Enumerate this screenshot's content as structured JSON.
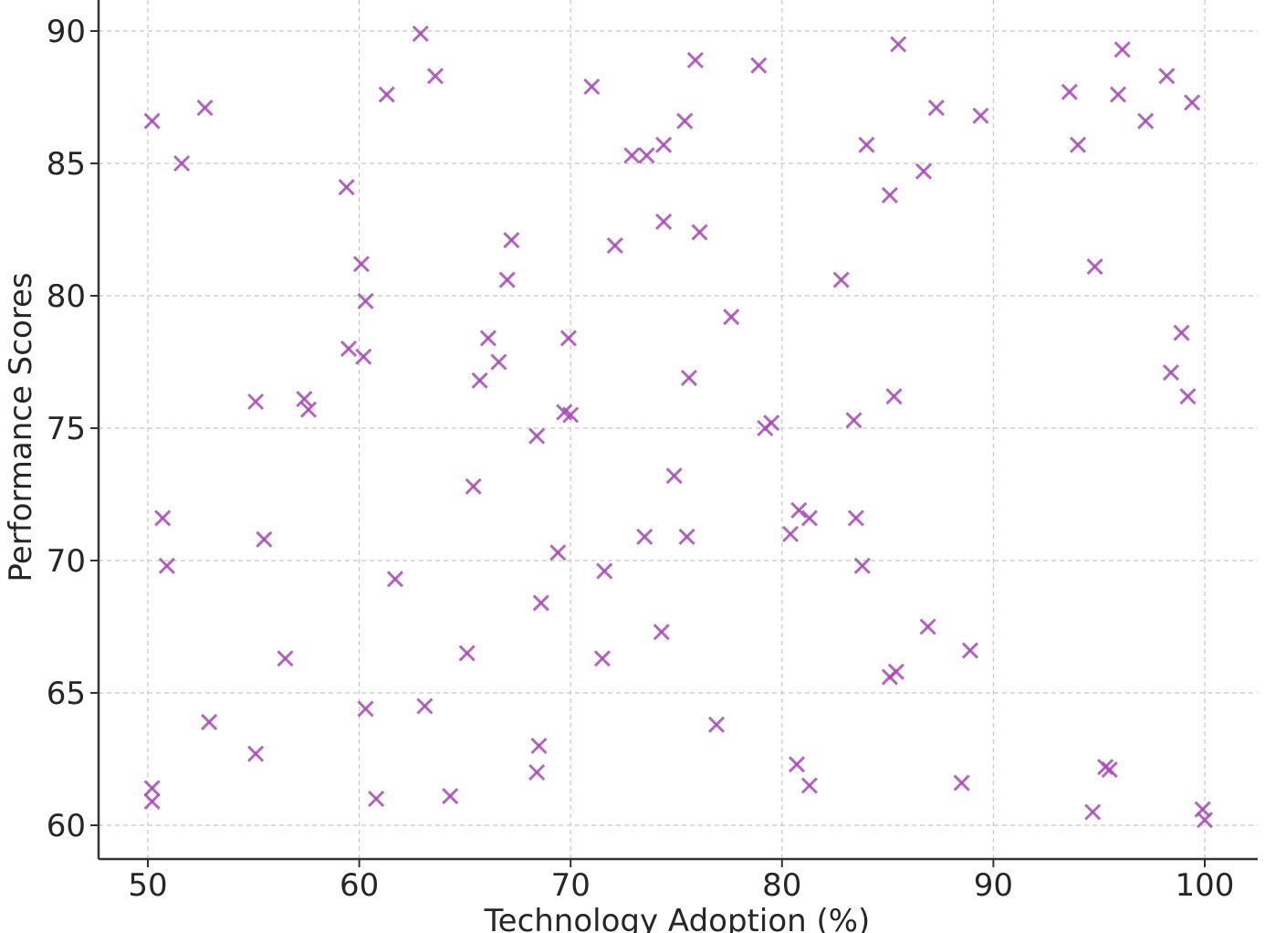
{
  "chart_data": {
    "type": "scatter",
    "title": "",
    "xlabel": "Technology Adoption (%)",
    "ylabel": "Performance Scores",
    "xlim": [
      47.6,
      102.4
    ],
    "ylim": [
      58.9,
      91.1
    ],
    "xticks": [
      50,
      60,
      70,
      80,
      90,
      100
    ],
    "yticks": [
      60,
      65,
      70,
      75,
      80,
      85,
      90
    ],
    "grid": true,
    "marker": "x",
    "color": "#a64ab4",
    "series": [
      {
        "points": [
          [
            50.2,
            86.6
          ],
          [
            51.6,
            85.0
          ],
          [
            52.7,
            87.1
          ],
          [
            50.7,
            71.6
          ],
          [
            50.9,
            69.8
          ],
          [
            50.2,
            61.4
          ],
          [
            50.2,
            60.9
          ],
          [
            52.9,
            63.9
          ],
          [
            55.1,
            76.0
          ],
          [
            55.5,
            70.8
          ],
          [
            56.5,
            66.3
          ],
          [
            55.1,
            62.7
          ],
          [
            57.4,
            76.1
          ],
          [
            57.6,
            75.7
          ],
          [
            59.4,
            84.1
          ],
          [
            59.5,
            78.0
          ],
          [
            60.1,
            81.2
          ],
          [
            60.3,
            79.8
          ],
          [
            60.2,
            77.7
          ],
          [
            60.3,
            64.4
          ],
          [
            60.8,
            61.0
          ],
          [
            61.3,
            87.6
          ],
          [
            61.7,
            69.3
          ],
          [
            62.9,
            89.9
          ],
          [
            63.6,
            88.3
          ],
          [
            63.1,
            64.5
          ],
          [
            64.3,
            61.1
          ],
          [
            65.1,
            66.5
          ],
          [
            65.4,
            72.8
          ],
          [
            65.7,
            76.8
          ],
          [
            66.1,
            78.4
          ],
          [
            66.6,
            77.5
          ],
          [
            67.0,
            80.6
          ],
          [
            67.2,
            82.1
          ],
          [
            68.4,
            74.7
          ],
          [
            68.6,
            68.4
          ],
          [
            68.5,
            63.0
          ],
          [
            68.4,
            62.0
          ],
          [
            69.4,
            70.3
          ],
          [
            69.7,
            75.6
          ],
          [
            70.0,
            75.5
          ],
          [
            69.9,
            78.4
          ],
          [
            71.0,
            87.9
          ],
          [
            71.6,
            69.6
          ],
          [
            71.5,
            66.3
          ],
          [
            72.1,
            81.9
          ],
          [
            72.9,
            85.3
          ],
          [
            73.6,
            85.3
          ],
          [
            73.5,
            70.9
          ],
          [
            74.3,
            67.3
          ],
          [
            74.4,
            85.7
          ],
          [
            74.4,
            82.8
          ],
          [
            74.9,
            73.2
          ],
          [
            75.4,
            86.6
          ],
          [
            75.6,
            76.9
          ],
          [
            75.5,
            70.9
          ],
          [
            75.9,
            88.9
          ],
          [
            76.1,
            82.4
          ],
          [
            76.9,
            63.8
          ],
          [
            77.6,
            79.2
          ],
          [
            78.9,
            88.7
          ],
          [
            79.2,
            75.0
          ],
          [
            79.5,
            75.2
          ],
          [
            80.4,
            71.0
          ],
          [
            80.8,
            71.9
          ],
          [
            80.7,
            62.3
          ],
          [
            81.3,
            71.6
          ],
          [
            81.3,
            61.5
          ],
          [
            82.8,
            80.6
          ],
          [
            83.4,
            75.3
          ],
          [
            83.5,
            71.6
          ],
          [
            83.8,
            69.8
          ],
          [
            84.0,
            85.7
          ],
          [
            85.1,
            83.8
          ],
          [
            85.3,
            76.2
          ],
          [
            85.1,
            65.6
          ],
          [
            85.4,
            65.8
          ],
          [
            85.5,
            89.5
          ],
          [
            86.7,
            84.7
          ],
          [
            86.9,
            67.5
          ],
          [
            87.3,
            87.1
          ],
          [
            88.5,
            61.6
          ],
          [
            88.9,
            66.6
          ],
          [
            89.4,
            86.8
          ],
          [
            93.6,
            87.7
          ],
          [
            94.0,
            85.7
          ],
          [
            94.8,
            81.1
          ],
          [
            94.7,
            60.5
          ],
          [
            95.3,
            62.2
          ],
          [
            95.5,
            62.1
          ],
          [
            95.9,
            87.6
          ],
          [
            96.1,
            89.3
          ],
          [
            97.2,
            86.6
          ],
          [
            98.2,
            88.3
          ],
          [
            98.4,
            77.1
          ],
          [
            98.9,
            78.6
          ],
          [
            99.2,
            76.2
          ],
          [
            99.4,
            87.3
          ],
          [
            99.9,
            60.6
          ],
          [
            100.0,
            60.2
          ]
        ]
      }
    ]
  }
}
